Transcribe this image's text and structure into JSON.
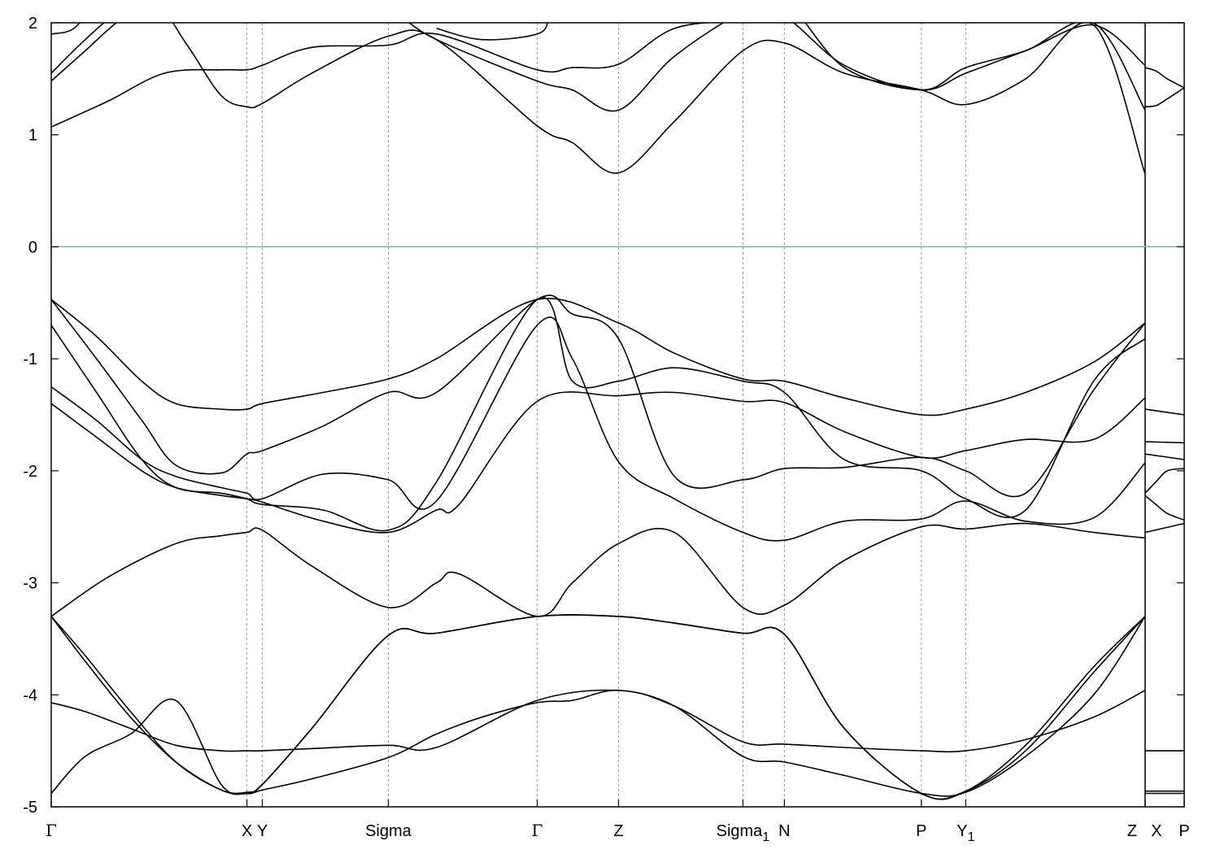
{
  "chart_data": {
    "type": "line",
    "title": "",
    "xlabel": "",
    "ylabel": "",
    "ylim": [
      -5,
      2
    ],
    "y_ticks": [
      {
        "value": 2,
        "label": "2"
      },
      {
        "value": 1,
        "label": "1"
      },
      {
        "value": 0,
        "label": "0"
      },
      {
        "value": -1,
        "label": "-1"
      },
      {
        "value": -2,
        "label": "-2"
      },
      {
        "value": -3,
        "label": "-3"
      },
      {
        "value": -4,
        "label": "-4"
      },
      {
        "value": -5,
        "label": "-5"
      }
    ],
    "k_points": [
      {
        "pos": 0.0,
        "label": "Γ"
      },
      {
        "pos": 0.1727,
        "label": "X"
      },
      {
        "pos": 0.1863,
        "label": "Y"
      },
      {
        "pos": 0.2975,
        "label": "Sigma"
      },
      {
        "pos": 0.4289,
        "label": "Γ"
      },
      {
        "pos": 0.5007,
        "label": "Z"
      },
      {
        "pos": 0.6105,
        "label": "Sigma",
        "subscript": "1"
      },
      {
        "pos": 0.6471,
        "label": "N"
      },
      {
        "pos": 0.768,
        "label": "P"
      },
      {
        "pos": 0.8072,
        "label": "Y",
        "subscript": "1"
      },
      {
        "pos": 0.9655,
        "label": "Z"
      },
      {
        "pos": 0.9655,
        "label": "X",
        "label_only": false
      },
      {
        "pos": 1.0,
        "label": "P"
      }
    ],
    "path_break": 0.9655,
    "fermi_level": 0,
    "fermi_color": "#5fb4c8",
    "line_color": "#000000",
    "series": [
      {
        "x": [
          0,
          0.03,
          0.07,
          0.11,
          0.15,
          0.1727,
          0.1863,
          0.23,
          0.2975,
          0.34,
          0.38,
          0.4289,
          0.46,
          0.5007,
          0.55,
          0.6105,
          0.6471,
          0.7,
          0.768,
          0.8072,
          0.86,
          0.92,
          0.9655
        ],
        "y": [
          -4.88,
          -4.55,
          -4.35,
          -4.05,
          -4.8,
          -4.88,
          -4.85,
          -4.75,
          -4.56,
          -4.35,
          -4.2,
          -4.07,
          -4.05,
          -3.96,
          -4.1,
          -4.55,
          -4.6,
          -4.72,
          -4.88,
          -4.87,
          -4.55,
          -4.0,
          -3.3
        ]
      },
      {
        "x": [
          0,
          0.03,
          0.07,
          0.11,
          0.15,
          0.1727,
          0.1863,
          0.23,
          0.2975,
          0.34,
          0.4289,
          0.5007,
          0.55,
          0.6105,
          0.6471,
          0.7,
          0.768,
          0.8072,
          0.86,
          0.92,
          0.9655
        ],
        "y": [
          -4.07,
          -4.15,
          -4.3,
          -4.45,
          -4.5,
          -4.5,
          -4.5,
          -4.48,
          -4.45,
          -4.47,
          -4.05,
          -3.96,
          -4.1,
          -4.42,
          -4.44,
          -4.47,
          -4.5,
          -4.5,
          -4.4,
          -4.2,
          -3.96
        ]
      },
      {
        "x": [
          0,
          0.03,
          0.07,
          0.11,
          0.15,
          0.1727,
          0.1863,
          0.23,
          0.2975,
          0.34,
          0.4289,
          0.5007,
          0.55,
          0.6105,
          0.6471,
          0.7,
          0.768,
          0.8072,
          0.86,
          0.92,
          0.9655
        ],
        "y": [
          -3.3,
          -3.7,
          -4.2,
          -4.6,
          -4.85,
          -4.88,
          -4.8,
          -4.3,
          -3.47,
          -3.45,
          -3.3,
          -3.3,
          -3.36,
          -3.45,
          -3.46,
          -4.3,
          -4.88,
          -4.86,
          -4.5,
          -3.8,
          -3.3
        ]
      },
      {
        "x": [
          0,
          0.03,
          0.07,
          0.11,
          0.15,
          0.1727,
          0.1863,
          0.23,
          0.2975,
          0.34,
          0.4289,
          0.5007,
          0.55,
          0.6105,
          0.6471,
          0.7,
          0.768,
          0.8072,
          0.86,
          0.92,
          0.9655
        ],
        "y": [
          -3.3,
          -3.65,
          -4.15,
          -4.6,
          -4.85,
          -4.87,
          -4.8,
          -4.3,
          -3.47,
          -3.45,
          -3.3,
          -3.3,
          -3.36,
          -3.45,
          -3.46,
          -4.3,
          -4.88,
          -4.86,
          -4.45,
          -3.75,
          -3.3
        ]
      },
      {
        "x": [
          0,
          0.05,
          0.11,
          0.15,
          0.1727,
          0.1863,
          0.23,
          0.2975,
          0.34,
          0.36,
          0.4289,
          0.46,
          0.5007,
          0.55,
          0.6105,
          0.6471,
          0.7,
          0.768,
          0.8072,
          0.86,
          0.92,
          0.9655
        ],
        "y": [
          -3.3,
          -2.95,
          -2.65,
          -2.58,
          -2.55,
          -2.53,
          -2.85,
          -3.22,
          -3.0,
          -2.92,
          -3.3,
          -3.0,
          -2.65,
          -2.55,
          -3.22,
          -3.2,
          -2.8,
          -2.5,
          -2.52,
          -2.47,
          -2.55,
          -2.6
        ]
      },
      {
        "x": [
          0,
          0.04,
          0.08,
          0.11,
          0.15,
          0.1727,
          0.1863,
          0.24,
          0.2975,
          0.34,
          0.36,
          0.4289,
          0.5007,
          0.55,
          0.6105,
          0.6471,
          0.7,
          0.768,
          0.8072,
          0.86,
          0.92,
          0.9655
        ],
        "y": [
          -1.4,
          -1.7,
          -2.0,
          -2.15,
          -2.22,
          -2.25,
          -2.28,
          -2.45,
          -2.55,
          -2.35,
          -2.3,
          -1.38,
          -1.33,
          -1.3,
          -1.38,
          -1.39,
          -1.65,
          -1.88,
          -1.82,
          -1.72,
          -1.72,
          -1.35
        ]
      },
      {
        "x": [
          0,
          0.04,
          0.08,
          0.11,
          0.15,
          0.1727,
          0.1863,
          0.24,
          0.2975,
          0.34,
          0.4289,
          0.46,
          0.5007,
          0.55,
          0.6105,
          0.6471,
          0.7,
          0.768,
          0.8072,
          0.86,
          0.92,
          0.9655
        ],
        "y": [
          -1.25,
          -1.55,
          -1.9,
          -2.05,
          -2.15,
          -2.2,
          -2.25,
          -2.03,
          -2.08,
          -2.27,
          -0.7,
          -1.0,
          -1.92,
          -2.25,
          -2.55,
          -2.62,
          -2.45,
          -2.43,
          -2.27,
          -2.45,
          -2.42,
          -1.93
        ]
      },
      {
        "x": [
          0,
          0.04,
          0.08,
          0.11,
          0.15,
          0.1727,
          0.1863,
          0.24,
          0.2975,
          0.34,
          0.4289,
          0.46,
          0.5007,
          0.55,
          0.6105,
          0.6471,
          0.7,
          0.768,
          0.8072,
          0.86,
          0.92,
          0.9655
        ],
        "y": [
          -0.7,
          -1.3,
          -1.9,
          -2.15,
          -2.2,
          -2.25,
          -2.3,
          -2.35,
          -2.53,
          -2.1,
          -0.47,
          -1.2,
          -1.2,
          -1.08,
          -1.2,
          -1.3,
          -1.9,
          -2.0,
          -2.25,
          -2.35,
          -1.2,
          -0.82
        ]
      },
      {
        "x": [
          0,
          0.04,
          0.08,
          0.11,
          0.15,
          0.1727,
          0.1863,
          0.24,
          0.2975,
          0.34,
          0.4289,
          0.46,
          0.5007,
          0.55,
          0.6105,
          0.6471,
          0.7,
          0.768,
          0.8072,
          0.86,
          0.92,
          0.9655
        ],
        "y": [
          -0.47,
          -1.0,
          -1.55,
          -1.95,
          -2.02,
          -1.85,
          -1.82,
          -1.6,
          -1.3,
          -1.3,
          -0.47,
          -0.6,
          -0.82,
          -2.05,
          -2.08,
          -1.98,
          -1.97,
          -1.88,
          -2.0,
          -2.2,
          -1.28,
          -0.68
        ]
      },
      {
        "x": [
          0,
          0.04,
          0.08,
          0.11,
          0.15,
          0.1727,
          0.1863,
          0.24,
          0.2975,
          0.34,
          0.4289,
          0.5007,
          0.55,
          0.6105,
          0.6471,
          0.7,
          0.768,
          0.8072,
          0.86,
          0.92,
          0.9655
        ],
        "y": [
          -0.47,
          -0.8,
          -1.2,
          -1.4,
          -1.45,
          -1.45,
          -1.4,
          -1.3,
          -1.18,
          -1.0,
          -0.47,
          -0.68,
          -0.95,
          -1.18,
          -1.2,
          -1.35,
          -1.5,
          -1.45,
          -1.3,
          -1.03,
          -0.68
        ]
      },
      {
        "x": [
          0,
          0.05,
          0.1,
          0.15,
          0.1727,
          0.1863,
          0.23,
          0.2975,
          0.34,
          0.4289,
          0.46,
          0.5007,
          0.55,
          0.6105,
          0.6471,
          0.7,
          0.768,
          0.8072,
          0.86,
          0.92,
          0.9655
        ],
        "y": [
          1.07,
          1.3,
          1.55,
          1.58,
          1.58,
          1.62,
          1.78,
          1.8,
          1.9,
          1.58,
          1.6,
          1.63,
          1.95,
          2.02,
          2.05,
          1.62,
          1.4,
          1.6,
          1.75,
          2.0,
          1.22
        ]
      },
      {
        "x": [
          0,
          0.03,
          0.06,
          0.09,
          0.12,
          0.15,
          0.1727,
          0.1863,
          0.23,
          0.2975,
          0.34,
          0.4289,
          0.46,
          0.5007,
          0.55,
          0.6105,
          0.6471,
          0.7,
          0.768,
          0.8072,
          0.86,
          0.92,
          0.9655
        ],
        "y": [
          1.48,
          1.75,
          2.02,
          2.2,
          1.8,
          1.35,
          1.25,
          1.28,
          1.55,
          1.88,
          1.85,
          1.08,
          0.93,
          0.66,
          1.12,
          1.75,
          1.82,
          1.55,
          1.4,
          1.27,
          1.5,
          1.98,
          0.65
        ]
      },
      {
        "x": [
          0,
          0.03,
          0.06,
          0.1,
          0.14,
          0.1727,
          0.1863,
          0.23,
          0.2975,
          0.34,
          0.4289,
          0.46,
          0.5007,
          0.55,
          0.6105,
          0.6471,
          0.7,
          0.768,
          0.8072,
          0.86,
          0.92,
          0.9655
        ],
        "y": [
          1.55,
          1.85,
          2.1,
          2.3,
          2.4,
          2.5,
          2.4,
          2.25,
          2.1,
          1.85,
          1.48,
          1.4,
          1.22,
          1.7,
          2.1,
          2.2,
          1.6,
          1.4,
          1.55,
          1.75,
          1.98,
          1.62
        ]
      },
      {
        "x": [
          0,
          0.02,
          0.04,
          0.06,
          0.08
        ],
        "y": [
          1.9,
          1.95,
          2.2,
          2.4,
          2.5
        ]
      },
      {
        "x": [
          0.34,
          0.38,
          0.4289,
          0.44,
          0.45
        ],
        "y": [
          1.95,
          1.85,
          1.9,
          2.05,
          2.3
        ]
      },
      {
        "x": [
          0.9655,
          0.975,
          0.985,
          1.0
        ],
        "y": [
          -2.2,
          -2.1,
          -2.0,
          -1.98
        ]
      },
      {
        "x": [
          0.9655,
          0.975,
          0.985,
          1.0
        ],
        "y": [
          -2.22,
          -2.3,
          -2.38,
          -2.44
        ]
      },
      {
        "x": [
          0.9655,
          1.0
        ],
        "y": [
          -1.45,
          -1.5
        ]
      },
      {
        "x": [
          0.9655,
          1.0
        ],
        "y": [
          -1.74,
          -1.75
        ]
      },
      {
        "x": [
          0.9655,
          1.0
        ],
        "y": [
          -1.85,
          -1.9
        ]
      },
      {
        "x": [
          0.9655,
          1.0
        ],
        "y": [
          -2.55,
          -2.47
        ]
      },
      {
        "x": [
          0.9655,
          1.0
        ],
        "y": [
          -4.5,
          -4.5
        ]
      },
      {
        "x": [
          0.9655,
          1.0
        ],
        "y": [
          -4.86,
          -4.86
        ]
      },
      {
        "x": [
          0.9655,
          1.0
        ],
        "y": [
          -4.88,
          -4.88
        ]
      },
      {
        "x": [
          0.9655,
          0.975,
          0.985,
          1.0
        ],
        "y": [
          1.25,
          1.26,
          1.32,
          1.42
        ]
      },
      {
        "x": [
          0.9655,
          0.975,
          0.985,
          1.0
        ],
        "y": [
          1.6,
          1.57,
          1.5,
          1.42
        ]
      }
    ]
  }
}
